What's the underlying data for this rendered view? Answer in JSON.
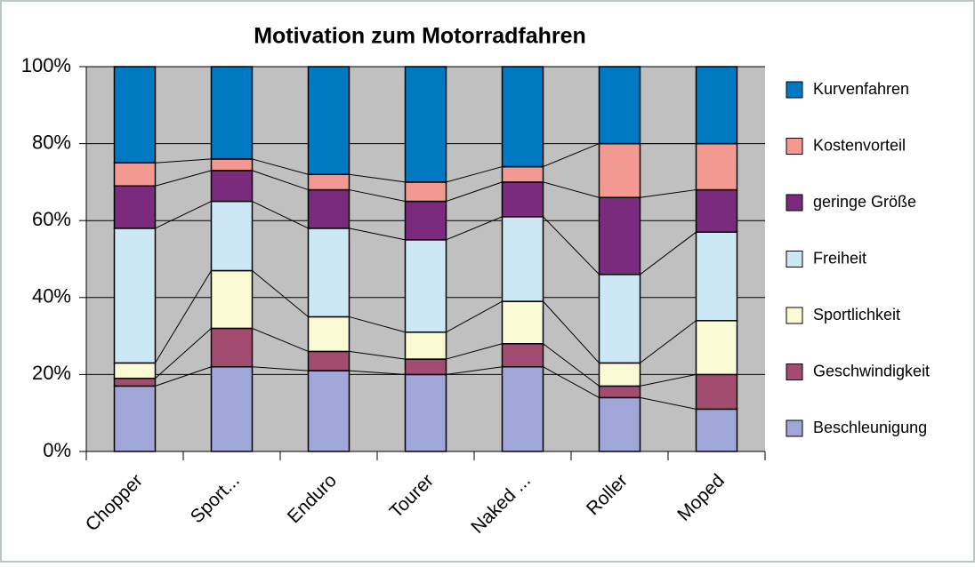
{
  "chart_data": {
    "type": "stacked_bar_100",
    "title": "Motivation zum Motorradfahren",
    "categories": [
      "Chopper",
      "Sport...",
      "Enduro",
      "Tourer",
      "Naked ...",
      "Roller",
      "Moped"
    ],
    "series": [
      {
        "name": "Beschleunigung",
        "color": "#a0a6d8",
        "values": [
          17,
          22,
          21,
          20,
          22,
          14,
          11
        ]
      },
      {
        "name": "Geschwindigkeit",
        "color": "#a34c72",
        "values": [
          2,
          10,
          5,
          4,
          6,
          3,
          9
        ]
      },
      {
        "name": "Sportlichkeit",
        "color": "#fafad4",
        "values": [
          4,
          15,
          9,
          7,
          11,
          6,
          14
        ]
      },
      {
        "name": "Freiheit",
        "color": "#cce8f4",
        "values": [
          35,
          18,
          23,
          24,
          22,
          23,
          23
        ]
      },
      {
        "name": "geringe Größe",
        "color": "#7a2b7e",
        "values": [
          11,
          8,
          10,
          10,
          9,
          20,
          11
        ]
      },
      {
        "name": "Kostenvorteil",
        "color": "#f29a92",
        "values": [
          6,
          3,
          4,
          5,
          4,
          14,
          12
        ]
      },
      {
        "name": "Kurvenfahren",
        "color": "#0079c2",
        "values": [
          25,
          24,
          28,
          30,
          26,
          20,
          20
        ]
      }
    ],
    "ylim": [
      0,
      100
    ],
    "yticks": [
      {
        "value": 0,
        "label": "0%"
      },
      {
        "value": 20,
        "label": "20%"
      },
      {
        "value": 40,
        "label": "40%"
      },
      {
        "value": 60,
        "label": "60%"
      },
      {
        "value": 80,
        "label": "80%"
      },
      {
        "value": 100,
        "label": "100%"
      }
    ],
    "grid": true,
    "legend": "right"
  }
}
